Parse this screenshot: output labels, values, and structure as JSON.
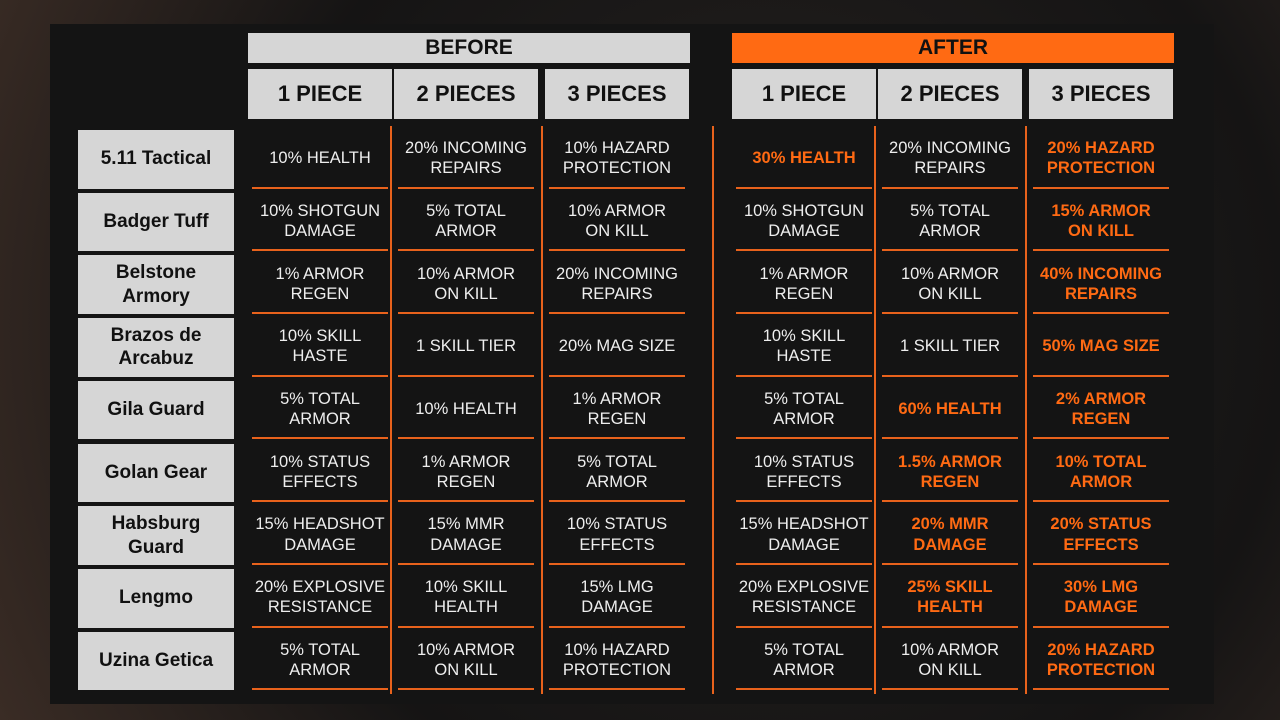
{
  "groups": [
    "BEFORE",
    "AFTER"
  ],
  "columns": [
    "1 PIECE",
    "2 PIECES",
    "3 PIECES"
  ],
  "rows": [
    {
      "name": "5.11 Tactical",
      "before": [
        "10% HEALTH",
        "20% INCOMING\nREPAIRS",
        "10% HAZARD\nPROTECTION"
      ],
      "after": [
        "30% HEALTH",
        "20% INCOMING\nREPAIRS",
        "20% HAZARD\nPROTECTION"
      ],
      "changed": [
        true,
        false,
        true
      ]
    },
    {
      "name": "Badger Tuff",
      "before": [
        "10% SHOTGUN\nDAMAGE",
        "5% TOTAL\nARMOR",
        "10% ARMOR\nON KILL"
      ],
      "after": [
        "10% SHOTGUN\nDAMAGE",
        "5% TOTAL\nARMOR",
        "15% ARMOR\nON KILL"
      ],
      "changed": [
        false,
        false,
        true
      ]
    },
    {
      "name": "Belstone\nArmory",
      "before": [
        "1% ARMOR\nREGEN",
        "10% ARMOR\nON KILL",
        "20% INCOMING\nREPAIRS"
      ],
      "after": [
        "1% ARMOR\nREGEN",
        "10% ARMOR\nON KILL",
        "40% INCOMING\nREPAIRS"
      ],
      "changed": [
        false,
        false,
        true
      ]
    },
    {
      "name": "Brazos de\nArcabuz",
      "before": [
        "10% SKILL\nHASTE",
        "1 SKILL TIER",
        "20% MAG SIZE"
      ],
      "after": [
        "10% SKILL\nHASTE",
        "1 SKILL TIER",
        "50% MAG SIZE"
      ],
      "changed": [
        false,
        false,
        true
      ]
    },
    {
      "name": "Gila Guard",
      "before": [
        "5% TOTAL\nARMOR",
        "10% HEALTH",
        "1% ARMOR\nREGEN"
      ],
      "after": [
        "5% TOTAL\nARMOR",
        "60% HEALTH",
        "2% ARMOR\nREGEN"
      ],
      "changed": [
        false,
        true,
        true
      ]
    },
    {
      "name": "Golan Gear",
      "before": [
        "10% STATUS\nEFFECTS",
        "1% ARMOR\nREGEN",
        "5% TOTAL\nARMOR"
      ],
      "after": [
        "10% STATUS\nEFFECTS",
        "1.5% ARMOR\nREGEN",
        "10% TOTAL\nARMOR"
      ],
      "changed": [
        false,
        true,
        true
      ]
    },
    {
      "name": "Habsburg\nGuard",
      "before": [
        "15% HEADSHOT\nDAMAGE",
        "15% MMR\nDAMAGE",
        "10% STATUS\nEFFECTS"
      ],
      "after": [
        "15% HEADSHOT\nDAMAGE",
        "20% MMR\nDAMAGE",
        "20% STATUS\nEFFECTS"
      ],
      "changed": [
        false,
        true,
        true
      ]
    },
    {
      "name": "Lengmo",
      "before": [
        "20% EXPLOSIVE\nRESISTANCE",
        "10% SKILL\nHEALTH",
        "15% LMG\nDAMAGE"
      ],
      "after": [
        "20% EXPLOSIVE\nRESISTANCE",
        "25% SKILL\nHEALTH",
        "30% LMG\nDAMAGE"
      ],
      "changed": [
        false,
        true,
        true
      ]
    },
    {
      "name": "Uzina Getica",
      "before": [
        "5% TOTAL\nARMOR",
        "10% ARMOR\nON KILL",
        "10% HAZARD\nPROTECTION"
      ],
      "after": [
        "5% TOTAL\nARMOR",
        "10% ARMOR\nON KILL",
        "20% HAZARD\nPROTECTION"
      ],
      "changed": [
        false,
        false,
        true
      ]
    }
  ]
}
